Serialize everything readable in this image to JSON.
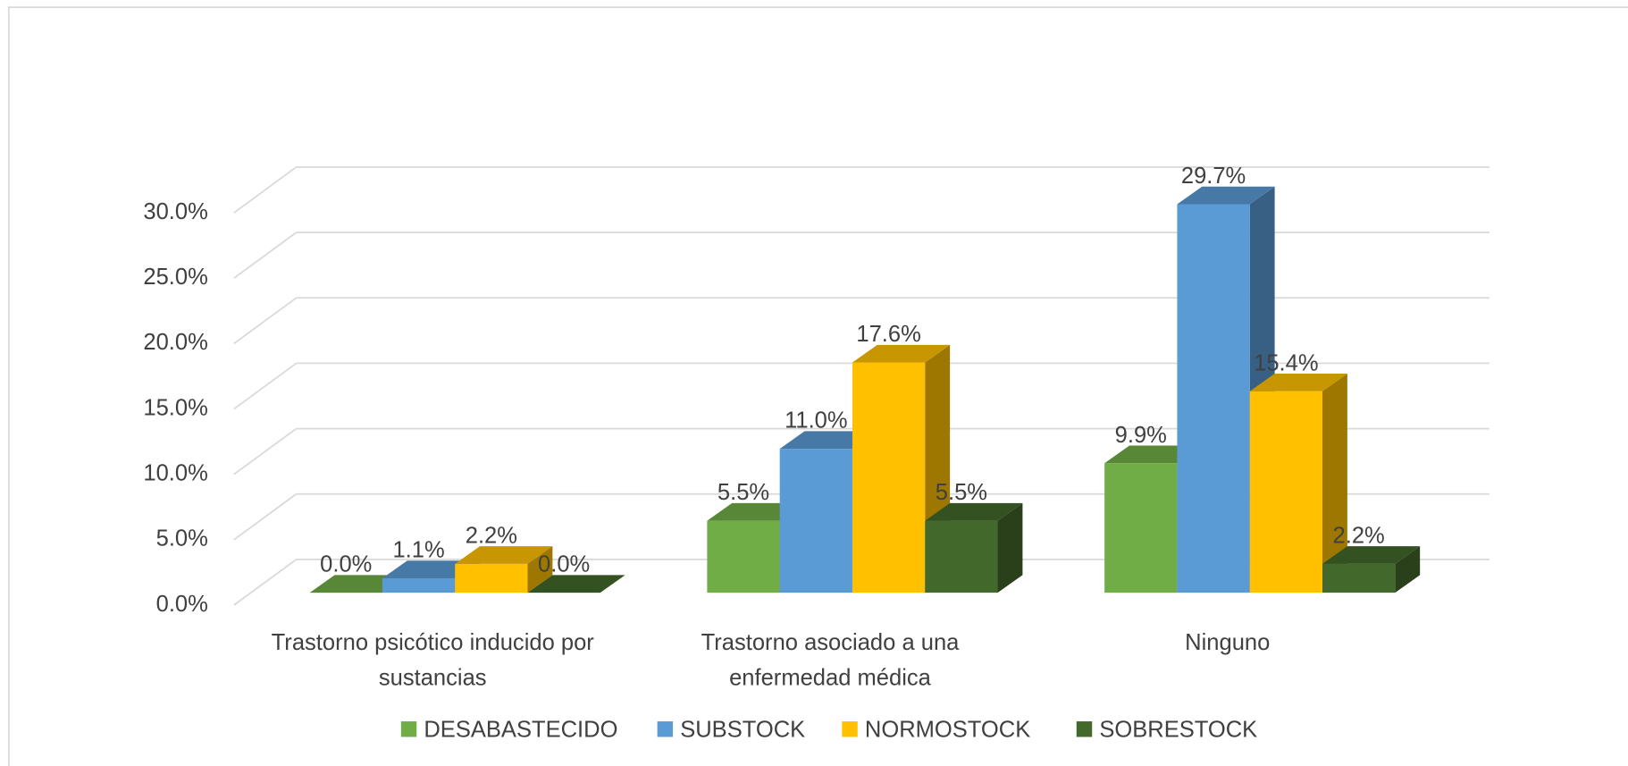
{
  "chart_data": {
    "type": "bar3d",
    "categories": [
      "Trastorno psicótico inducido por sustancias",
      "Trastorno asociado a una enfermedad médica",
      "Ninguno"
    ],
    "series": [
      {
        "name": "DESABASTECIDO",
        "color": "#70ad47",
        "values": [
          0.0,
          5.5,
          9.9
        ],
        "value_labels": [
          "0.0%",
          "5.5%",
          "9.9%"
        ]
      },
      {
        "name": "SUBSTOCK",
        "color": "#5b9bd5",
        "values": [
          1.1,
          11.0,
          29.7
        ],
        "value_labels": [
          "1.1%",
          "11.0%",
          "29.7%"
        ]
      },
      {
        "name": "NORMOSTOCK",
        "color": "#ffc000",
        "values": [
          2.2,
          17.6,
          15.4
        ],
        "value_labels": [
          "2.2%",
          "17.6%",
          "15.4%"
        ]
      },
      {
        "name": "SOBRESTOCK",
        "color": "#43682b",
        "values": [
          0.0,
          5.5,
          2.2
        ],
        "value_labels": [
          "0.0%",
          "5.5%",
          "2.2%"
        ]
      }
    ],
    "ylim": [
      0,
      30
    ],
    "yticks": [
      {
        "value": 0,
        "label": "0.0%"
      },
      {
        "value": 5,
        "label": "5.0%"
      },
      {
        "value": 10,
        "label": "10.0%"
      },
      {
        "value": 15,
        "label": "15.0%"
      },
      {
        "value": 20,
        "label": "20.0%"
      },
      {
        "value": 25,
        "label": "25.0%"
      },
      {
        "value": 30,
        "label": "30.0%"
      }
    ],
    "grid": true,
    "legend": "bottom"
  }
}
